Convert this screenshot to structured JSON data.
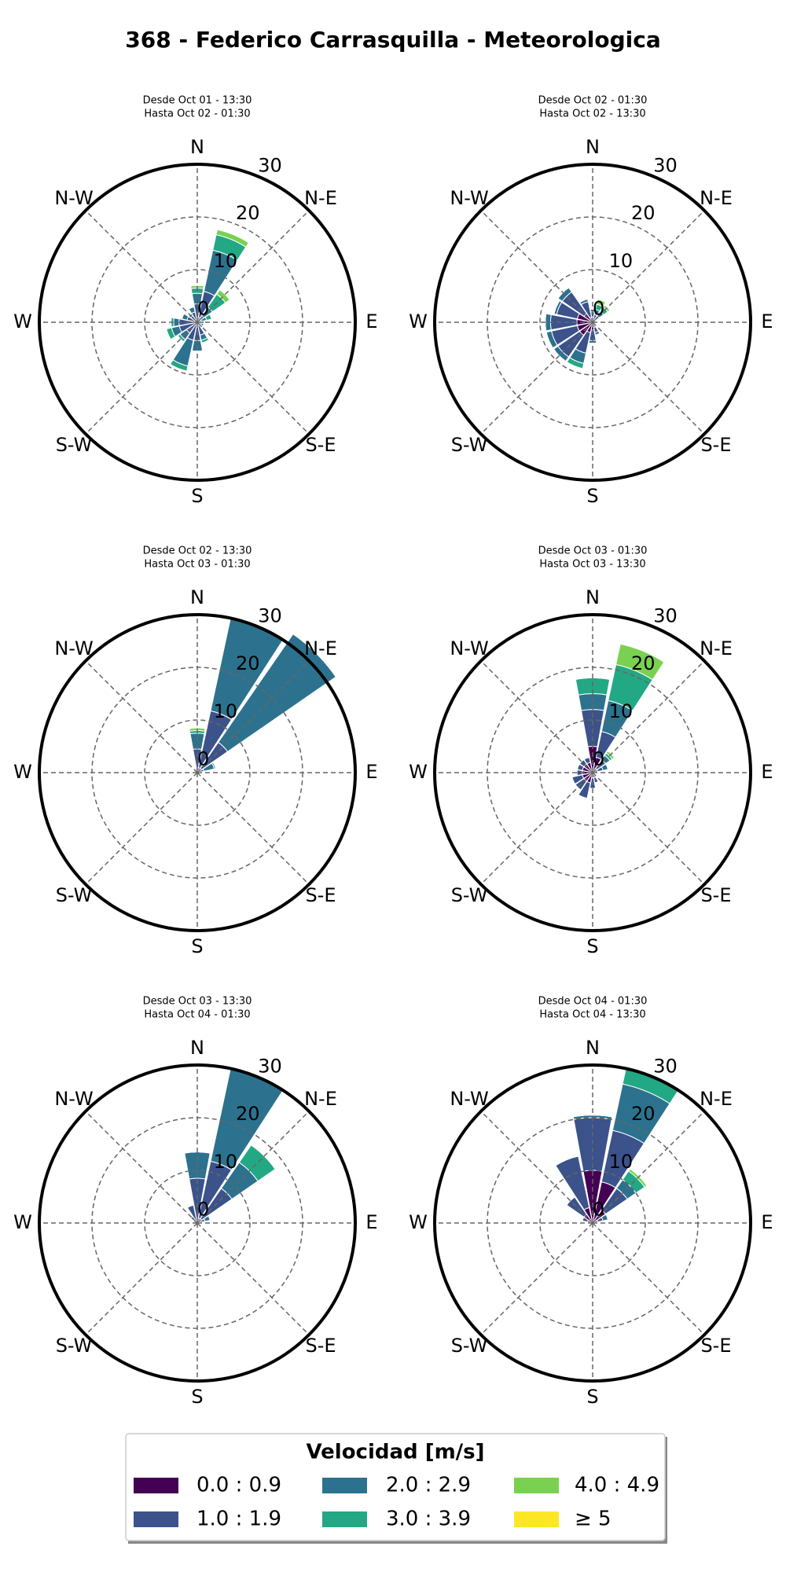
{
  "title": "368 - Federico Carrasquilla - Meteorologica",
  "legend": {
    "title": "Velocidad [m/s]",
    "labels": [
      "0.0 : 0.9",
      "1.0 : 1.9",
      "2.0 : 2.9",
      "3.0 : 3.9",
      "4.0 : 4.9",
      "≥  5"
    ],
    "colors": [
      "#440154",
      "#3b528b",
      "#2c728e",
      "#22a884",
      "#7ad151",
      "#fde725"
    ]
  },
  "chart_data": [
    {
      "type": "windrose",
      "subtitle": [
        "Desde Oct 01 - 13:30",
        "Hasta Oct 02 - 01:30"
      ],
      "directions": [
        "N",
        "N-E",
        "E",
        "S-E",
        "S",
        "S-W",
        "W",
        "N-W"
      ],
      "rlim": [
        0,
        30
      ],
      "rticks": [
        0,
        10,
        20,
        30
      ],
      "values": [
        [
          0.5,
          1,
          0.5,
          0.3,
          0.3,
          0.3,
          0.3,
          0.5,
          0.5,
          0.5,
          0.5,
          0.5,
          0.5,
          0.5,
          0.5,
          0.5
        ],
        [
          3,
          5,
          1,
          0.5,
          0.5,
          0.5,
          0.5,
          2,
          3,
          3,
          2,
          3,
          3,
          1.5,
          1,
          1.5
        ],
        [
          2,
          8,
          2,
          1,
          0.5,
          0.5,
          0.5,
          1,
          2,
          5,
          1.5,
          1.5,
          1,
          1,
          0.5,
          1
        ],
        [
          1,
          3,
          3,
          1,
          0,
          0,
          0,
          0.5,
          0,
          1,
          0.5,
          1,
          0.5,
          0,
          0,
          0
        ],
        [
          0.5,
          1,
          1,
          0,
          0,
          0,
          0,
          0,
          0,
          0,
          0,
          0,
          0,
          0,
          0,
          0
        ],
        [
          0,
          0,
          0,
          0,
          0,
          0,
          0,
          0,
          0,
          0,
          0,
          0,
          0,
          0,
          0,
          0
        ]
      ]
    },
    {
      "type": "windrose",
      "subtitle": [
        "Desde Oct 02 - 01:30",
        "Hasta Oct 02 - 13:30"
      ],
      "directions": [
        "N",
        "N-E",
        "E",
        "S-E",
        "S",
        "S-W",
        "W",
        "N-W"
      ],
      "rlim": [
        0,
        30
      ],
      "rticks": [
        0,
        10,
        20,
        30
      ],
      "values": [
        [
          1,
          0.5,
          0.5,
          0.3,
          0.3,
          0.3,
          0.5,
          1,
          1.5,
          2,
          3,
          3,
          3,
          3,
          2,
          1
        ],
        [
          1,
          1,
          1,
          0.3,
          0.3,
          0.3,
          0.5,
          1,
          2,
          4,
          5,
          5,
          5,
          4,
          5,
          3
        ],
        [
          0.5,
          1,
          1,
          0,
          0,
          0,
          0,
          0.5,
          0.5,
          2,
          1,
          1,
          1,
          0.5,
          1,
          0.5
        ],
        [
          0,
          1,
          1,
          0,
          0,
          0,
          0,
          0,
          0,
          1,
          0,
          0,
          0,
          0,
          0,
          0
        ],
        [
          0,
          1,
          0.5,
          0,
          0,
          0,
          0,
          0,
          0,
          0,
          0,
          0,
          0,
          0,
          0,
          0
        ],
        [
          0,
          0,
          0,
          0,
          0,
          0,
          0,
          0,
          0,
          0,
          0,
          0,
          0,
          0,
          0,
          0
        ]
      ]
    },
    {
      "type": "windrose",
      "subtitle": [
        "Desde Oct 02 - 13:30",
        "Hasta Oct 03 - 01:30"
      ],
      "directions": [
        "N",
        "N-E",
        "E",
        "S-E",
        "S",
        "S-W",
        "W",
        "N-W"
      ],
      "rlim": [
        0,
        30
      ],
      "rticks": [
        0,
        10,
        20,
        30
      ],
      "values": [
        [
          0.5,
          1,
          1,
          0.3,
          0,
          0,
          0,
          0,
          0.3,
          0.3,
          0.3,
          0.3,
          0.3,
          0.3,
          0.3,
          0.3
        ],
        [
          4,
          11,
          6,
          1,
          0,
          0,
          0,
          0,
          0,
          0,
          0,
          0,
          0,
          0.3,
          0.5,
          0.5
        ],
        [
          3,
          18,
          25,
          2,
          0,
          0,
          0,
          0,
          0,
          0,
          0,
          0,
          0,
          0,
          0,
          0
        ],
        [
          0.5,
          0,
          0,
          0.3,
          0,
          0,
          0,
          0,
          0,
          0,
          0,
          0,
          0,
          0,
          0,
          0
        ],
        [
          0.5,
          0,
          0,
          0,
          0,
          0,
          0,
          0,
          0,
          0,
          0,
          0,
          0,
          0,
          0,
          0
        ],
        [
          0,
          0,
          0,
          0,
          0,
          0,
          0,
          0,
          0,
          0,
          0,
          0,
          0,
          0,
          0,
          0
        ]
      ]
    },
    {
      "type": "windrose",
      "subtitle": [
        "Desde Oct 03 - 01:30",
        "Hasta Oct 03 - 13:30"
      ],
      "directions": [
        "N",
        "N-E",
        "E",
        "S-E",
        "S",
        "S-W",
        "W",
        "N-W"
      ],
      "rlim": [
        0,
        30
      ],
      "rticks": [
        0,
        10,
        20,
        30
      ],
      "values": [
        [
          5,
          3,
          1,
          1,
          0.5,
          0.5,
          0.5,
          1,
          1,
          2,
          2,
          2,
          2,
          2,
          2,
          2
        ],
        [
          7,
          5,
          2,
          1,
          0,
          0,
          0.5,
          1,
          2,
          3,
          2,
          2,
          1,
          1,
          1,
          1
        ],
        [
          3,
          6,
          1,
          1,
          0,
          0,
          0,
          0,
          0,
          0,
          0,
          0,
          0,
          0,
          0,
          0
        ],
        [
          3,
          7,
          0.5,
          0,
          0,
          0,
          0,
          0,
          0,
          0,
          0,
          0,
          0,
          0,
          0,
          0
        ],
        [
          0,
          4,
          0.5,
          0,
          0,
          0,
          0,
          0,
          0,
          0,
          0,
          0,
          0,
          0,
          0,
          0
        ],
        [
          0,
          0,
          0,
          0,
          0,
          0,
          0,
          0,
          0,
          0,
          0,
          0,
          0,
          0,
          0,
          0
        ]
      ]
    },
    {
      "type": "windrose",
      "subtitle": [
        "Desde Oct 03 - 13:30",
        "Hasta Oct 04 - 01:30"
      ],
      "directions": [
        "N",
        "N-E",
        "E",
        "S-E",
        "S",
        "S-W",
        "W",
        "N-W"
      ],
      "rlim": [
        0,
        30
      ],
      "rticks": [
        0,
        10,
        20,
        30
      ],
      "values": [
        [
          0.5,
          1,
          1,
          0.5,
          0,
          0,
          0,
          0,
          0,
          0,
          0,
          0,
          0.3,
          0.3,
          0.5,
          0.5
        ],
        [
          8,
          11,
          7,
          1,
          0.5,
          0,
          0,
          0,
          0,
          0,
          0,
          0,
          0.3,
          0.5,
          1,
          3
        ],
        [
          5,
          18,
          6,
          1,
          0,
          0,
          0,
          0,
          0,
          0,
          0,
          0,
          0,
          0,
          0,
          0
        ],
        [
          0,
          0,
          4,
          0,
          0,
          0,
          0,
          0,
          0,
          0,
          0,
          0,
          0,
          0,
          0,
          0
        ],
        [
          0,
          0,
          0,
          0,
          0,
          0,
          0,
          0,
          0,
          0,
          0,
          0,
          0,
          0,
          0,
          0
        ],
        [
          0,
          0,
          0,
          0,
          0,
          0,
          0,
          0,
          0,
          0,
          0,
          0,
          0,
          0,
          0,
          0
        ]
      ]
    },
    {
      "type": "windrose",
      "subtitle": [
        "Desde Oct 04 - 01:30",
        "Hasta Oct 04 - 13:30"
      ],
      "directions": [
        "N",
        "N-E",
        "E",
        "S-E",
        "S",
        "S-W",
        "W",
        "N-W"
      ],
      "rlim": [
        0,
        30
      ],
      "rticks": [
        0,
        10,
        20,
        30
      ],
      "values": [
        [
          10,
          8,
          3,
          1,
          0.3,
          0,
          0,
          0,
          0,
          0.3,
          0.3,
          0.3,
          0.5,
          1,
          2,
          3
        ],
        [
          10,
          10,
          5,
          1,
          0.5,
          0,
          0,
          0,
          0,
          0,
          0,
          0,
          0.5,
          1,
          4,
          10
        ],
        [
          0.5,
          9,
          2,
          1,
          0,
          0,
          0,
          0,
          0,
          0,
          0,
          0,
          0,
          0,
          0,
          0
        ],
        [
          0,
          3,
          2,
          0,
          0,
          0,
          0,
          0,
          0,
          0,
          0,
          0,
          0,
          0,
          0,
          0
        ],
        [
          0,
          0,
          0.5,
          0,
          0,
          0,
          0,
          0,
          0,
          0,
          0,
          0,
          0,
          0,
          0,
          0
        ],
        [
          0,
          0,
          0,
          0,
          0,
          0,
          0,
          0,
          0,
          0,
          0,
          0,
          0,
          0,
          0,
          0
        ]
      ]
    }
  ]
}
